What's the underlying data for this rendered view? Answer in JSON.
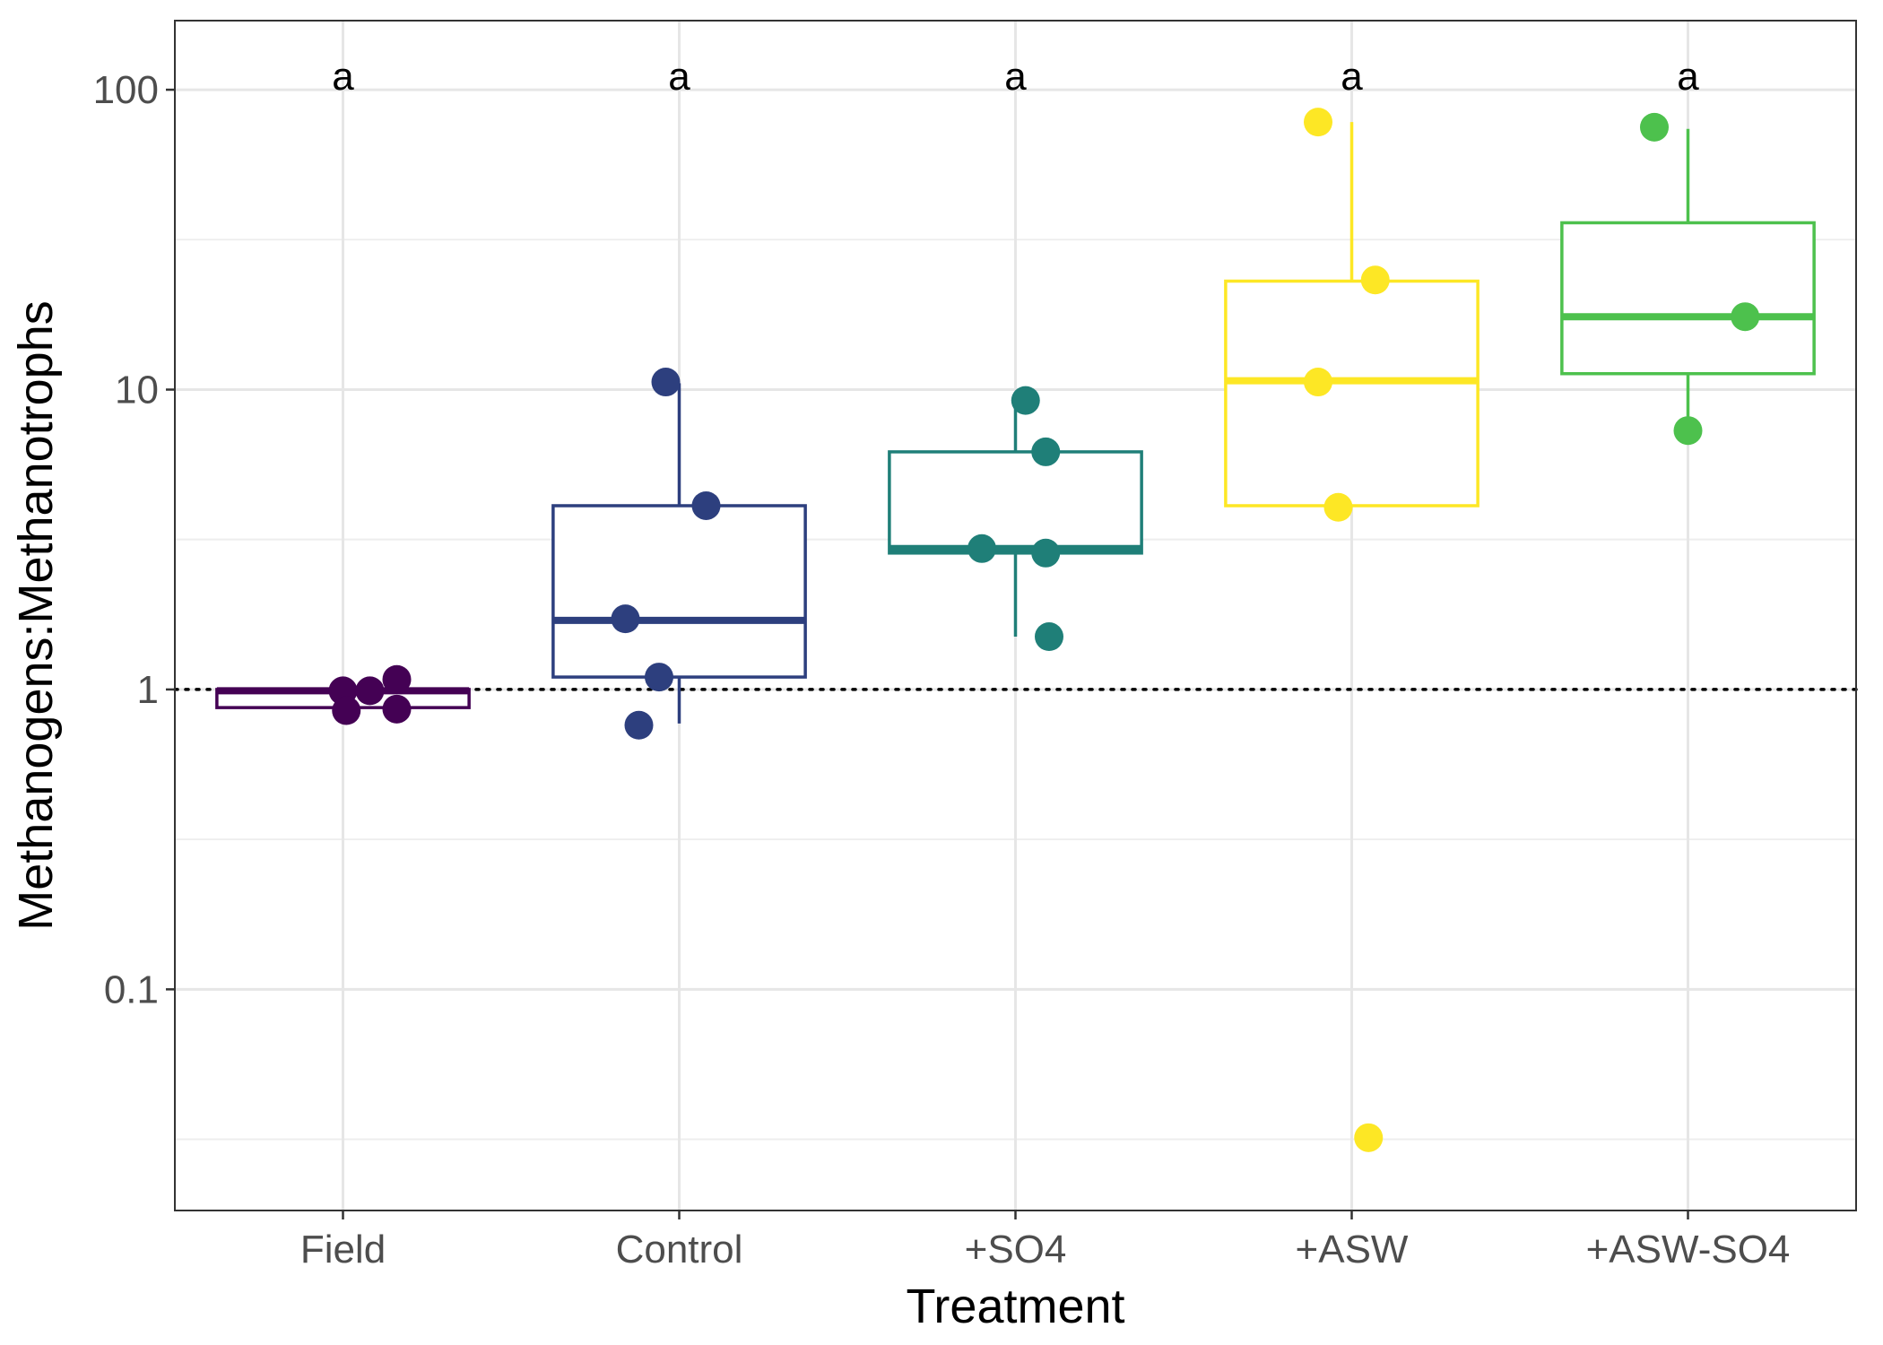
{
  "chart_data": {
    "type": "box",
    "xlabel": "Treatment",
    "ylabel": "Methanogens:Methanotrophs",
    "y_scale": "log10",
    "ylim": [
      0.0183,
      170
    ],
    "y_ticks": [
      0.1,
      1,
      10,
      100
    ],
    "y_tick_labels": [
      "0.1",
      "1",
      "10",
      "100"
    ],
    "reference_line": {
      "y": 1,
      "style": "dotted"
    },
    "grid": true,
    "categories": [
      "Field",
      "Control",
      "+SO4",
      "+ASW",
      "+ASW-SO4"
    ],
    "series": [
      {
        "category": "Field",
        "color": "#440154",
        "letter": "a",
        "box": {
          "whisker_low": 0.85,
          "q1": 0.87,
          "median": 0.99,
          "q3": 1.0,
          "whisker_high": 1.0
        },
        "points": [
          {
            "x_offset": -0.0,
            "y": 0.99
          },
          {
            "x_offset": 0.08,
            "y": 0.99
          },
          {
            "x_offset": 0.16,
            "y": 1.08
          },
          {
            "x_offset": 0.01,
            "y": 0.85
          },
          {
            "x_offset": 0.16,
            "y": 0.86
          }
        ]
      },
      {
        "category": "Control",
        "color": "#31688E",
        "stroke": "#2D3F7E",
        "letter": "a",
        "box": {
          "whisker_low": 0.77,
          "q1": 1.1,
          "median": 1.7,
          "q3": 4.1,
          "whisker_high": 10.5
        },
        "points": [
          {
            "x_offset": -0.04,
            "y": 10.6
          },
          {
            "x_offset": 0.08,
            "y": 4.1
          },
          {
            "x_offset": -0.16,
            "y": 1.72
          },
          {
            "x_offset": -0.06,
            "y": 1.1
          },
          {
            "x_offset": -0.12,
            "y": 0.76
          }
        ]
      },
      {
        "category": "+SO4",
        "color": "#1F7F78",
        "letter": "a",
        "box": {
          "whisker_low": 1.5,
          "q1": 2.85,
          "median": 2.95,
          "q3": 6.2,
          "whisker_high": 9.2
        },
        "points": [
          {
            "x_offset": 0.03,
            "y": 9.2
          },
          {
            "x_offset": 0.09,
            "y": 6.2
          },
          {
            "x_offset": -0.1,
            "y": 2.95
          },
          {
            "x_offset": 0.09,
            "y": 2.85
          },
          {
            "x_offset": 0.1,
            "y": 1.5
          }
        ]
      },
      {
        "category": "+ASW",
        "color": "#FDE725",
        "letter": "a",
        "box": {
          "whisker_low": 4.1,
          "q1": 4.1,
          "median": 10.7,
          "q3": 23.0,
          "whisker_high": 78
        },
        "points": [
          {
            "x_offset": -0.1,
            "y": 78
          },
          {
            "x_offset": 0.07,
            "y": 23.2
          },
          {
            "x_offset": -0.1,
            "y": 10.6
          },
          {
            "x_offset": -0.04,
            "y": 4.05
          },
          {
            "x_offset": 0.05,
            "y": 0.032
          }
        ]
      },
      {
        "category": "+ASW-SO4",
        "color": "#4DC14D",
        "letter": "a",
        "box": {
          "whisker_low": 7.3,
          "q1": 11.3,
          "median": 17.5,
          "q3": 36.0,
          "whisker_high": 74
        },
        "points": [
          {
            "x_offset": -0.1,
            "y": 75
          },
          {
            "x_offset": 0.17,
            "y": 17.5
          },
          {
            "x_offset": 0.0,
            "y": 7.3
          }
        ]
      }
    ]
  }
}
